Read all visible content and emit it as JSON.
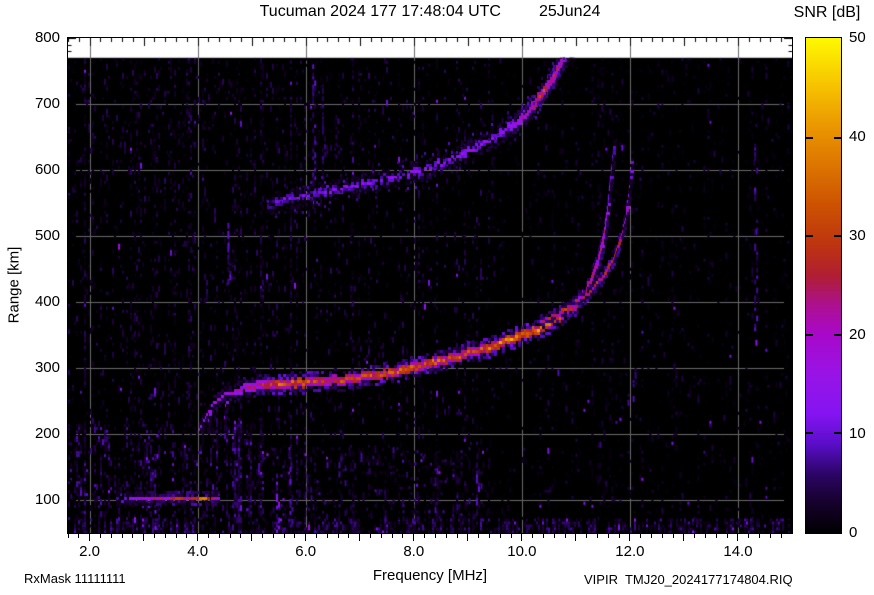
{
  "header": {
    "title": "Tucuman 2024 177 17:48:04 UTC",
    "date": "25Jun24",
    "snr_label": "SNR [dB]"
  },
  "footer": {
    "rxmask": "RxMask 11111111",
    "file": "VIPIR  TMJ20_2024177174804.RIQ"
  },
  "chart_data": {
    "type": "heatmap",
    "title": "Tucuman 2024 177 17:48:04 UTC  25Jun24",
    "xlabel": "Frequency [MHz]",
    "ylabel": "Range [km]",
    "x_range": [
      1.6,
      15.0
    ],
    "y_range": [
      50,
      800
    ],
    "data_top_km": 770,
    "x_tick_labels": [
      "2.0",
      "4.0",
      "6.0",
      "8.0",
      "10.0",
      "12.0",
      "14.0"
    ],
    "x_tick_values": [
      2,
      4,
      6,
      8,
      10,
      12,
      14
    ],
    "x_minor_step": 0.2,
    "y_tick_labels": [
      "100",
      "200",
      "300",
      "400",
      "500",
      "600",
      "700",
      "800"
    ],
    "y_tick_values": [
      100,
      200,
      300,
      400,
      500,
      600,
      700,
      800
    ],
    "y_minor_step": 10,
    "grid": {
      "x_lines": [
        2,
        4,
        6,
        8,
        10,
        12,
        14
      ],
      "y_lines": [
        100,
        200,
        300,
        400,
        500,
        600,
        700
      ],
      "color": "#6b6b6b"
    },
    "colorbar": {
      "label": "SNR [dB]",
      "range": [
        0,
        50
      ],
      "tick_labels": [
        "0",
        "10",
        "20",
        "30",
        "40",
        "50"
      ],
      "tick_values": [
        0,
        10,
        20,
        30,
        40,
        50
      ],
      "notch_values": [
        10,
        20,
        30,
        40
      ],
      "stops": [
        [
          0,
          "#000000"
        ],
        [
          3,
          "#16012b"
        ],
        [
          6,
          "#2c0566"
        ],
        [
          9,
          "#5a0ec8"
        ],
        [
          12,
          "#8414f2"
        ],
        [
          16,
          "#9814e6"
        ],
        [
          20,
          "#a808ca"
        ],
        [
          23,
          "#ad1090"
        ],
        [
          26,
          "#b01e32"
        ],
        [
          29,
          "#bd3310"
        ],
        [
          33,
          "#cc5102"
        ],
        [
          37,
          "#dc7400"
        ],
        [
          41,
          "#ea9600"
        ],
        [
          45,
          "#f6c100"
        ],
        [
          50,
          "#fff800"
        ]
      ]
    },
    "traces": [
      {
        "name": "E-region-echo",
        "width_km": 8,
        "fuzz_km": 0,
        "points": [
          [
            2.5,
            103,
            9
          ],
          [
            2.7,
            104,
            12
          ],
          [
            2.9,
            104,
            14
          ],
          [
            3.1,
            105,
            16
          ],
          [
            3.3,
            105,
            24
          ],
          [
            3.45,
            104,
            20
          ],
          [
            3.6,
            105,
            26
          ],
          [
            3.75,
            104,
            22
          ],
          [
            3.9,
            105,
            24
          ],
          [
            4.0,
            105,
            31
          ],
          [
            4.1,
            106,
            33
          ],
          [
            4.2,
            105,
            28
          ],
          [
            4.32,
            105,
            18
          ],
          [
            4.45,
            104,
            11
          ]
        ]
      },
      {
        "name": "F-trace-leading-hook",
        "width_km": 7,
        "fuzz_km": 0,
        "points": [
          [
            4.05,
            209,
            12
          ],
          [
            4.1,
            220,
            13
          ],
          [
            4.17,
            232,
            14
          ],
          [
            4.27,
            244,
            15
          ],
          [
            4.4,
            256,
            16
          ],
          [
            4.55,
            264,
            17
          ],
          [
            4.7,
            269,
            18
          ]
        ]
      },
      {
        "name": "hook-spur-1",
        "width_km": 5,
        "fuzz_km": 0,
        "points": [
          [
            4.2,
            212,
            11
          ],
          [
            4.22,
            228,
            12
          ],
          [
            4.24,
            240,
            12
          ]
        ]
      },
      {
        "name": "hook-spur-2",
        "width_km": 5,
        "fuzz_km": 0,
        "points": [
          [
            4.5,
            216,
            12
          ],
          [
            4.52,
            234,
            13
          ],
          [
            4.54,
            252,
            13
          ]
        ]
      },
      {
        "name": "F-trace-O-mode",
        "width_km": 13,
        "fuzz_km": 0,
        "points": [
          [
            4.7,
            269,
            18
          ],
          [
            4.9,
            272,
            20
          ],
          [
            5.1,
            275,
            23
          ],
          [
            5.3,
            277,
            27
          ],
          [
            5.5,
            278,
            33
          ],
          [
            5.7,
            279,
            35
          ],
          [
            5.9,
            280,
            33
          ],
          [
            6.1,
            281,
            28
          ],
          [
            6.3,
            282,
            27
          ],
          [
            6.5,
            283,
            29
          ],
          [
            6.7,
            285,
            27
          ],
          [
            6.9,
            287,
            29
          ],
          [
            7.1,
            289,
            28
          ],
          [
            7.3,
            291,
            31
          ],
          [
            7.5,
            294,
            33
          ],
          [
            7.7,
            297,
            31
          ],
          [
            7.9,
            301,
            33
          ],
          [
            8.1,
            305,
            35
          ],
          [
            8.3,
            309,
            32
          ],
          [
            8.5,
            313,
            30
          ],
          [
            8.7,
            317,
            28
          ],
          [
            8.9,
            322,
            30
          ],
          [
            9.1,
            327,
            29
          ],
          [
            9.3,
            332,
            31
          ],
          [
            9.5,
            337,
            33
          ],
          [
            9.7,
            343,
            35
          ],
          [
            9.9,
            349,
            36
          ],
          [
            10.1,
            355,
            37
          ],
          [
            10.3,
            362,
            35
          ],
          [
            10.5,
            370,
            33
          ],
          [
            10.7,
            379,
            30
          ],
          [
            10.9,
            391,
            28
          ],
          [
            11.05,
            404,
            26
          ],
          [
            11.2,
            420,
            24
          ],
          [
            11.32,
            440,
            25
          ],
          [
            11.42,
            463,
            23
          ],
          [
            11.5,
            490,
            24
          ],
          [
            11.56,
            518,
            20
          ],
          [
            11.6,
            545,
            16
          ],
          [
            11.64,
            575,
            13
          ],
          [
            11.68,
            608,
            11
          ],
          [
            11.71,
            638,
            10
          ]
        ]
      },
      {
        "name": "F-trace-X-mode",
        "width_km": 9,
        "fuzz_km": 0,
        "points": [
          [
            10.35,
            372,
            20
          ],
          [
            10.55,
            380,
            24
          ],
          [
            10.75,
            389,
            26
          ],
          [
            10.95,
            399,
            25
          ],
          [
            11.15,
            411,
            24
          ],
          [
            11.35,
            426,
            26
          ],
          [
            11.5,
            442,
            25
          ],
          [
            11.65,
            461,
            26
          ],
          [
            11.77,
            482,
            24
          ],
          [
            11.86,
            505,
            22
          ],
          [
            11.93,
            530,
            18
          ],
          [
            11.98,
            558,
            14
          ],
          [
            12.02,
            588,
            12
          ],
          [
            12.05,
            618,
            10
          ]
        ]
      },
      {
        "name": "second-hop-trace",
        "width_km": 12,
        "fuzz_km": 25,
        "points": [
          [
            5.3,
            549,
            8
          ],
          [
            5.6,
            556,
            10
          ],
          [
            5.9,
            561,
            11
          ],
          [
            6.2,
            566,
            10
          ],
          [
            6.5,
            572,
            12
          ],
          [
            6.8,
            577,
            11
          ],
          [
            7.1,
            582,
            12
          ],
          [
            7.4,
            587,
            11
          ],
          [
            7.7,
            592,
            12
          ],
          [
            8.0,
            598,
            13
          ],
          [
            8.3,
            606,
            12
          ],
          [
            8.6,
            615,
            13
          ],
          [
            8.9,
            625,
            13
          ],
          [
            9.2,
            638,
            14
          ],
          [
            9.5,
            652,
            13
          ],
          [
            9.8,
            668,
            15
          ],
          [
            10.0,
            682,
            20
          ],
          [
            10.15,
            695,
            24
          ],
          [
            10.3,
            710,
            27
          ],
          [
            10.45,
            726,
            28
          ],
          [
            10.6,
            744,
            25
          ],
          [
            10.72,
            762,
            22
          ],
          [
            10.82,
            774,
            18
          ]
        ]
      },
      {
        "name": "second-hop-top-exit",
        "width_km": 10,
        "fuzz_km": 12,
        "points": [
          [
            10.82,
            772,
            14
          ],
          [
            10.95,
            788,
            12
          ],
          [
            11.05,
            800,
            10
          ]
        ]
      }
    ],
    "rfi_streaks": [
      {
        "f": 6.12,
        "km": [
          545,
          760
        ],
        "snr": 7
      },
      {
        "f": 6.3,
        "km": [
          555,
          730
        ],
        "snr": 5
      },
      {
        "f": 6.55,
        "km": [
          610,
          690
        ],
        "snr": 5
      },
      {
        "f": 5.45,
        "km": [
          55,
          140
        ],
        "snr": 9
      },
      {
        "f": 5.7,
        "km": [
          55,
          150
        ],
        "snr": 7
      },
      {
        "f": 9.15,
        "km": [
          55,
          175
        ],
        "snr": 8
      },
      {
        "f": 3.2,
        "km": [
          55,
          200
        ],
        "snr": 8
      },
      {
        "f": 4.55,
        "km": [
          430,
          520
        ],
        "snr": 7
      },
      {
        "f": 12.05,
        "km": [
          255,
          300
        ],
        "snr": 6
      },
      {
        "f": 14.3,
        "km": [
          350,
          640
        ],
        "snr": 7
      }
    ],
    "noise_regions": [
      {
        "f": [
          1.6,
          15.0
        ],
        "km": [
          50,
          72
        ],
        "density": 0.5,
        "snr": [
          2,
          8
        ]
      },
      {
        "f": [
          1.6,
          9.4
        ],
        "km": [
          72,
          770
        ],
        "density": 0.1,
        "snr": [
          1,
          6
        ]
      },
      {
        "f": [
          9.4,
          15.0
        ],
        "km": [
          72,
          770
        ],
        "density": 0.055,
        "snr": [
          1,
          5
        ]
      },
      {
        "f": [
          1.6,
          5.2
        ],
        "km": [
          72,
          215
        ],
        "density": 0.22,
        "snr": [
          2,
          9
        ]
      },
      {
        "f": [
          1.6,
          4.6
        ],
        "km": [
          215,
          770
        ],
        "density": 0.05,
        "snr": [
          2,
          6
        ]
      },
      {
        "f": [
          5.2,
          9.4
        ],
        "km": [
          72,
          180
        ],
        "density": 0.13,
        "snr": [
          2,
          8
        ]
      }
    ],
    "noise_seed": 7
  }
}
